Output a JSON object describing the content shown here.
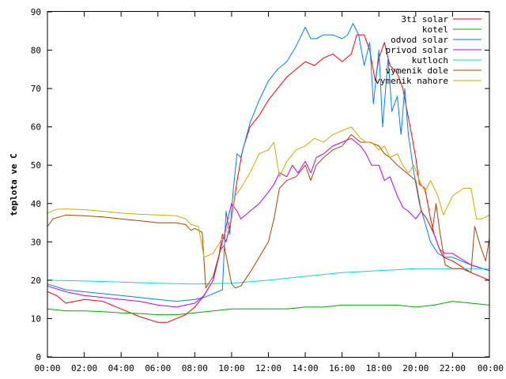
{
  "chart_data": {
    "type": "line",
    "xlabel": "",
    "ylabel": "teplota ve C",
    "xlim": [
      0,
      24
    ],
    "ylim": [
      0,
      90
    ],
    "x_ticks": [
      "00:00",
      "02:00",
      "04:00",
      "06:00",
      "08:00",
      "10:00",
      "12:00",
      "14:00",
      "16:00",
      "18:00",
      "20:00",
      "22:00",
      "00:00"
    ],
    "y_ticks": [
      0,
      10,
      20,
      30,
      40,
      50,
      60,
      70,
      80,
      90
    ],
    "grid": false,
    "legend_position": "top-right",
    "series": [
      {
        "name": "3ti solar",
        "color": "#ff0000",
        "points": [
          [
            0,
            17
          ],
          [
            0.5,
            16
          ],
          [
            1,
            14
          ],
          [
            2,
            15
          ],
          [
            3,
            14.5
          ],
          [
            4,
            12.5
          ],
          [
            5,
            10.5
          ],
          [
            6,
            9
          ],
          [
            6.5,
            9
          ],
          [
            7,
            10
          ],
          [
            7.5,
            11
          ],
          [
            8,
            13
          ],
          [
            8.5,
            16
          ],
          [
            9,
            20
          ],
          [
            9.3,
            26
          ],
          [
            9.5,
            32
          ],
          [
            9.7,
            30
          ],
          [
            10,
            36
          ],
          [
            10.3,
            46
          ],
          [
            10.6,
            54
          ],
          [
            11,
            60
          ],
          [
            11.5,
            63
          ],
          [
            12,
            67
          ],
          [
            12.5,
            70
          ],
          [
            13,
            73
          ],
          [
            13.5,
            75
          ],
          [
            14,
            77
          ],
          [
            14.5,
            76
          ],
          [
            15,
            78
          ],
          [
            15.5,
            79
          ],
          [
            16,
            77
          ],
          [
            16.5,
            79
          ],
          [
            16.8,
            84
          ],
          [
            17.2,
            84
          ],
          [
            17.5,
            80
          ],
          [
            17.8,
            72
          ],
          [
            18,
            78
          ],
          [
            18.3,
            82
          ],
          [
            18.6,
            76
          ],
          [
            19,
            74
          ],
          [
            19.3,
            70
          ],
          [
            19.7,
            60
          ],
          [
            20,
            52
          ],
          [
            20.2,
            45
          ],
          [
            20.5,
            44
          ],
          [
            20.8,
            36
          ],
          [
            21,
            32
          ],
          [
            21.3,
            28
          ],
          [
            21.5,
            26
          ],
          [
            22,
            25
          ],
          [
            23,
            22
          ],
          [
            24,
            20
          ]
        ]
      },
      {
        "name": "kotel",
        "color": "#00aa00",
        "points": [
          [
            0,
            12.5
          ],
          [
            1,
            12
          ],
          [
            2,
            12
          ],
          [
            3,
            11.8
          ],
          [
            4,
            11.5
          ],
          [
            5,
            11.3
          ],
          [
            6,
            11
          ],
          [
            7,
            11
          ],
          [
            8,
            11.5
          ],
          [
            9,
            12
          ],
          [
            10,
            12.5
          ],
          [
            11,
            12.5
          ],
          [
            12,
            12.5
          ],
          [
            13,
            12.5
          ],
          [
            14,
            13
          ],
          [
            15,
            13
          ],
          [
            16,
            13.5
          ],
          [
            17,
            13.5
          ],
          [
            18,
            13.5
          ],
          [
            19,
            13.5
          ],
          [
            20,
            13
          ],
          [
            21,
            13.5
          ],
          [
            21.5,
            14
          ],
          [
            22,
            14.5
          ],
          [
            23,
            14
          ],
          [
            24,
            13.5
          ]
        ]
      },
      {
        "name": "odvod solar",
        "color": "#0080ff",
        "points": [
          [
            0,
            19
          ],
          [
            1,
            17.5
          ],
          [
            2,
            17
          ],
          [
            3,
            16.5
          ],
          [
            4,
            16
          ],
          [
            5,
            15.5
          ],
          [
            6,
            15
          ],
          [
            7,
            14.5
          ],
          [
            8,
            15
          ],
          [
            8.5,
            15.5
          ],
          [
            9,
            16.5
          ],
          [
            9.5,
            17.5
          ],
          [
            9.7,
            38
          ],
          [
            9.9,
            32
          ],
          [
            10.1,
            44
          ],
          [
            10.3,
            53
          ],
          [
            10.5,
            52
          ],
          [
            11,
            61
          ],
          [
            11.5,
            67
          ],
          [
            12,
            72
          ],
          [
            12.5,
            75
          ],
          [
            13,
            77
          ],
          [
            13.5,
            81
          ],
          [
            14,
            86
          ],
          [
            14.3,
            83
          ],
          [
            14.6,
            83
          ],
          [
            15,
            84
          ],
          [
            15.5,
            84
          ],
          [
            16,
            83
          ],
          [
            16.3,
            84
          ],
          [
            16.6,
            87
          ],
          [
            16.9,
            84
          ],
          [
            17.2,
            76
          ],
          [
            17.5,
            82
          ],
          [
            17.7,
            66
          ],
          [
            18,
            80
          ],
          [
            18.2,
            60
          ],
          [
            18.5,
            78
          ],
          [
            18.7,
            64
          ],
          [
            19,
            68
          ],
          [
            19.2,
            58
          ],
          [
            19.4,
            70
          ],
          [
            19.6,
            58
          ],
          [
            19.9,
            48
          ],
          [
            20.2,
            40
          ],
          [
            20.5,
            35
          ],
          [
            20.8,
            30
          ],
          [
            21.2,
            27
          ],
          [
            21.6,
            26
          ],
          [
            22,
            26
          ],
          [
            23,
            24
          ],
          [
            24,
            22.5
          ]
        ]
      },
      {
        "name": "privod solar",
        "color": "#c000ff",
        "points": [
          [
            0,
            18.5
          ],
          [
            1,
            17
          ],
          [
            2,
            16
          ],
          [
            3,
            15.5
          ],
          [
            4,
            15
          ],
          [
            5,
            14.5
          ],
          [
            6,
            13.5
          ],
          [
            7,
            13
          ],
          [
            8,
            14
          ],
          [
            8.5,
            16
          ],
          [
            9,
            20
          ],
          [
            9.3,
            26
          ],
          [
            9.5,
            30
          ],
          [
            9.7,
            34
          ],
          [
            10,
            40
          ],
          [
            10.3,
            38
          ],
          [
            10.5,
            36
          ],
          [
            11,
            38
          ],
          [
            11.5,
            40
          ],
          [
            12,
            43
          ],
          [
            12.3,
            45
          ],
          [
            12.6,
            48
          ],
          [
            13,
            47
          ],
          [
            13.3,
            50
          ],
          [
            13.6,
            48
          ],
          [
            14,
            51
          ],
          [
            14.3,
            48
          ],
          [
            14.6,
            52
          ],
          [
            15,
            53
          ],
          [
            15.5,
            55
          ],
          [
            16,
            56
          ],
          [
            16.5,
            57
          ],
          [
            17,
            55
          ],
          [
            17.3,
            53
          ],
          [
            17.6,
            50
          ],
          [
            18,
            50
          ],
          [
            18.3,
            46
          ],
          [
            18.6,
            47
          ],
          [
            19,
            42
          ],
          [
            19.3,
            39
          ],
          [
            19.6,
            38
          ],
          [
            20,
            36
          ],
          [
            20.3,
            38
          ],
          [
            20.6,
            36
          ],
          [
            21,
            32
          ],
          [
            21.3,
            28
          ],
          [
            21.6,
            27
          ],
          [
            22,
            27
          ],
          [
            23,
            24
          ],
          [
            24,
            22.5
          ]
        ]
      },
      {
        "name": "kutloch",
        "color": "#00dddd",
        "points": [
          [
            0,
            20
          ],
          [
            2,
            19.8
          ],
          [
            4,
            19.5
          ],
          [
            6,
            19.2
          ],
          [
            8,
            19
          ],
          [
            10,
            19.2
          ],
          [
            12,
            20
          ],
          [
            14,
            21
          ],
          [
            16,
            22
          ],
          [
            18,
            22.5
          ],
          [
            20,
            23
          ],
          [
            22,
            23
          ],
          [
            24,
            23
          ]
        ]
      },
      {
        "name": "vymenik dole",
        "color": "#aa4400",
        "points": [
          [
            0,
            34
          ],
          [
            0.3,
            36
          ],
          [
            1,
            37
          ],
          [
            2,
            36.8
          ],
          [
            3,
            36.5
          ],
          [
            4,
            36
          ],
          [
            5,
            35.5
          ],
          [
            6,
            35
          ],
          [
            7,
            35
          ],
          [
            7.5,
            34.5
          ],
          [
            7.8,
            33
          ],
          [
            8,
            33.5
          ],
          [
            8.4,
            32.5
          ],
          [
            8.6,
            18
          ],
          [
            9,
            21
          ],
          [
            9.4,
            28
          ],
          [
            9.6,
            29
          ],
          [
            9.8,
            24
          ],
          [
            10,
            19
          ],
          [
            10.2,
            18
          ],
          [
            10.5,
            18.5
          ],
          [
            11,
            22
          ],
          [
            11.5,
            26
          ],
          [
            12,
            30
          ],
          [
            12.3,
            36
          ],
          [
            12.6,
            44
          ],
          [
            13,
            46
          ],
          [
            13.5,
            47
          ],
          [
            14,
            50
          ],
          [
            14.3,
            46
          ],
          [
            14.6,
            50
          ],
          [
            15,
            52
          ],
          [
            15.5,
            54
          ],
          [
            16,
            55
          ],
          [
            16.5,
            58
          ],
          [
            17,
            56
          ],
          [
            17.5,
            56
          ],
          [
            18,
            55
          ],
          [
            18.3,
            53
          ],
          [
            18.6,
            52
          ],
          [
            19,
            50
          ],
          [
            19.5,
            48
          ],
          [
            20,
            46
          ],
          [
            20.3,
            38
          ],
          [
            20.6,
            36
          ],
          [
            20.9,
            33
          ],
          [
            21.1,
            40
          ],
          [
            21.3,
            33
          ],
          [
            21.6,
            24
          ],
          [
            22,
            23
          ],
          [
            22.5,
            23
          ],
          [
            23,
            22
          ],
          [
            23.2,
            34
          ],
          [
            23.5,
            29
          ],
          [
            23.8,
            25
          ],
          [
            24,
            31
          ]
        ]
      },
      {
        "name": "vymenik nahore",
        "color": "#d4aa00",
        "points": [
          [
            0,
            37.5
          ],
          [
            0.5,
            38.5
          ],
          [
            1,
            38.6
          ],
          [
            2,
            38.4
          ],
          [
            3,
            38
          ],
          [
            4,
            37.5
          ],
          [
            5,
            37.2
          ],
          [
            6,
            37
          ],
          [
            7,
            36.8
          ],
          [
            7.5,
            36
          ],
          [
            7.8,
            34.5
          ],
          [
            8.2,
            34
          ],
          [
            8.5,
            26
          ],
          [
            9,
            27
          ],
          [
            9.5,
            31
          ],
          [
            10,
            36
          ],
          [
            10.2,
            42
          ],
          [
            10.5,
            44
          ],
          [
            11,
            48
          ],
          [
            11.5,
            53
          ],
          [
            12,
            54
          ],
          [
            12.3,
            56
          ],
          [
            12.6,
            47
          ],
          [
            13,
            51
          ],
          [
            13.5,
            54
          ],
          [
            14,
            55
          ],
          [
            14.5,
            57
          ],
          [
            15,
            56
          ],
          [
            15.5,
            58
          ],
          [
            16,
            59
          ],
          [
            16.5,
            60
          ],
          [
            17,
            57
          ],
          [
            17.3,
            56
          ],
          [
            17.6,
            56
          ],
          [
            18,
            54
          ],
          [
            18.3,
            55
          ],
          [
            18.6,
            52
          ],
          [
            19,
            53
          ],
          [
            19.3,
            50
          ],
          [
            19.6,
            48
          ],
          [
            19.9,
            50
          ],
          [
            20.2,
            46
          ],
          [
            20.5,
            43
          ],
          [
            20.8,
            46
          ],
          [
            21.2,
            42
          ],
          [
            21.5,
            37
          ],
          [
            22,
            42
          ],
          [
            22.3,
            43
          ],
          [
            22.6,
            44
          ],
          [
            23,
            44
          ],
          [
            23.3,
            36
          ],
          [
            23.6,
            36
          ],
          [
            24,
            37
          ]
        ]
      }
    ]
  }
}
